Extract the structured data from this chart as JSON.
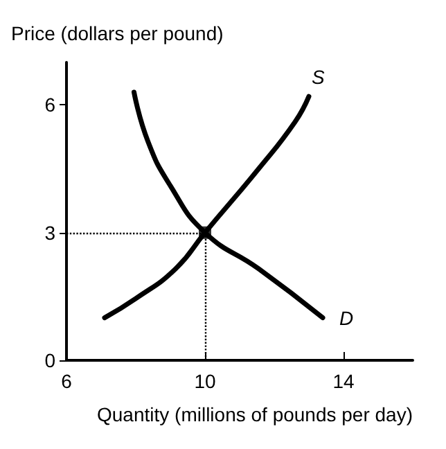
{
  "chart_data": {
    "type": "line",
    "xlabel": "Quantity (millions of pounds per day)",
    "ylabel": "Price (dollars per pound)",
    "series": [
      {
        "name": "S",
        "color": "#000000",
        "x": [
          7.1,
          8.0,
          9.15,
          10,
          11.55,
          12.6,
          13.0
        ],
        "values": [
          1.0,
          1.45,
          2.15,
          3,
          4.5,
          5.6,
          6.2
        ]
      },
      {
        "name": "D",
        "color": "#000000",
        "x": [
          7.95,
          8.35,
          9.0,
          10,
          11.55,
          13.4
        ],
        "values": [
          6.3,
          5.15,
          4.1,
          3,
          2.15,
          1.0
        ]
      },
      {
        "type": "scatter",
        "color": "#000000",
        "marker": "square",
        "x": [
          10
        ],
        "values": [
          3
        ]
      }
    ],
    "ref_lines": [
      {
        "axis": "x",
        "value": 10,
        "line_style": "dotted",
        "color": "#000000"
      },
      {
        "axis": "y",
        "value": 3,
        "line_style": "dotted",
        "color": "#000000"
      }
    ],
    "xlim": [
      6,
      16
    ],
    "xticks": [
      6,
      10,
      14
    ],
    "ylim": [
      0,
      7
    ],
    "yticks": [
      0,
      3,
      6
    ],
    "grid": false,
    "marker": "none",
    "line_style": "solid"
  }
}
